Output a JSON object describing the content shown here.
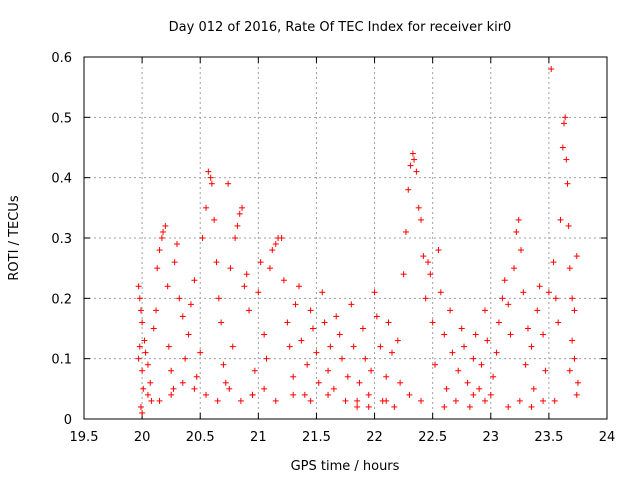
{
  "chart_data": {
    "type": "scatter",
    "title": "Day 012 of 2016, Rate Of TEC Index for receiver kir0",
    "xlabel": "GPS time / hours",
    "ylabel": "ROTI / TECUs",
    "xlim": [
      19.5,
      24
    ],
    "ylim": [
      0,
      0.6
    ],
    "x_ticks": [
      19.5,
      20,
      20.5,
      21,
      21.5,
      22,
      22.5,
      23,
      23.5,
      24
    ],
    "x_tick_labels": [
      "19.5",
      "20",
      "20.5",
      "21",
      "21.5",
      "22",
      "22.5",
      "23",
      "23.5",
      "24"
    ],
    "y_ticks": [
      0,
      0.1,
      0.2,
      0.3,
      0.4,
      0.5,
      0.6
    ],
    "y_tick_labels": [
      "0",
      "0.1",
      "0.2",
      "0.3",
      "0.4",
      "0.5",
      "0.6"
    ],
    "grid": true,
    "marker": "+",
    "marker_color": "#ff0000",
    "series": [
      {
        "name": "ROTI",
        "points": [
          [
            19.97,
            0.22
          ],
          [
            19.98,
            0.2
          ],
          [
            19.99,
            0.18
          ],
          [
            20.0,
            0.16
          ],
          [
            19.98,
            0.12
          ],
          [
            19.97,
            0.1
          ],
          [
            20.0,
            0.08
          ],
          [
            20.01,
            0.05
          ],
          [
            19.99,
            0.02
          ],
          [
            20.0,
            0.01
          ],
          [
            20.02,
            0.13
          ],
          [
            20.03,
            0.11
          ],
          [
            20.05,
            0.09
          ],
          [
            20.07,
            0.06
          ],
          [
            20.08,
            0.03
          ],
          [
            20.1,
            0.15
          ],
          [
            20.12,
            0.18
          ],
          [
            20.13,
            0.25
          ],
          [
            20.15,
            0.28
          ],
          [
            20.17,
            0.3
          ],
          [
            20.18,
            0.31
          ],
          [
            20.2,
            0.32
          ],
          [
            20.22,
            0.22
          ],
          [
            20.23,
            0.12
          ],
          [
            20.25,
            0.08
          ],
          [
            20.27,
            0.05
          ],
          [
            20.28,
            0.26
          ],
          [
            20.3,
            0.29
          ],
          [
            20.32,
            0.2
          ],
          [
            20.35,
            0.17
          ],
          [
            20.37,
            0.1
          ],
          [
            20.4,
            0.14
          ],
          [
            20.42,
            0.19
          ],
          [
            20.45,
            0.23
          ],
          [
            20.47,
            0.07
          ],
          [
            20.5,
            0.11
          ],
          [
            20.52,
            0.3
          ],
          [
            20.55,
            0.35
          ],
          [
            20.57,
            0.41
          ],
          [
            20.59,
            0.4
          ],
          [
            20.6,
            0.39
          ],
          [
            20.62,
            0.33
          ],
          [
            20.64,
            0.26
          ],
          [
            20.66,
            0.2
          ],
          [
            20.68,
            0.16
          ],
          [
            20.7,
            0.09
          ],
          [
            20.72,
            0.06
          ],
          [
            20.74,
            0.39
          ],
          [
            20.76,
            0.25
          ],
          [
            20.78,
            0.12
          ],
          [
            20.8,
            0.3
          ],
          [
            20.82,
            0.32
          ],
          [
            20.84,
            0.34
          ],
          [
            20.86,
            0.35
          ],
          [
            20.88,
            0.22
          ],
          [
            20.9,
            0.24
          ],
          [
            20.92,
            0.18
          ],
          [
            20.95,
            0.04
          ],
          [
            20.97,
            0.08
          ],
          [
            21.0,
            0.21
          ],
          [
            21.02,
            0.26
          ],
          [
            21.05,
            0.14
          ],
          [
            21.07,
            0.1
          ],
          [
            21.1,
            0.25
          ],
          [
            21.12,
            0.28
          ],
          [
            21.15,
            0.29
          ],
          [
            21.17,
            0.3
          ],
          [
            21.2,
            0.3
          ],
          [
            21.22,
            0.23
          ],
          [
            21.25,
            0.16
          ],
          [
            21.27,
            0.12
          ],
          [
            21.3,
            0.07
          ],
          [
            21.32,
            0.19
          ],
          [
            21.35,
            0.22
          ],
          [
            21.37,
            0.13
          ],
          [
            21.4,
            0.04
          ],
          [
            21.42,
            0.09
          ],
          [
            21.45,
            0.18
          ],
          [
            21.47,
            0.15
          ],
          [
            21.5,
            0.11
          ],
          [
            21.52,
            0.06
          ],
          [
            21.55,
            0.21
          ],
          [
            21.57,
            0.16
          ],
          [
            21.6,
            0.08
          ],
          [
            21.62,
            0.12
          ],
          [
            21.65,
            0.05
          ],
          [
            21.67,
            0.17
          ],
          [
            21.7,
            0.14
          ],
          [
            21.72,
            0.1
          ],
          [
            21.75,
            0.03
          ],
          [
            21.77,
            0.07
          ],
          [
            21.8,
            0.19
          ],
          [
            21.82,
            0.12
          ],
          [
            21.85,
            0.02
          ],
          [
            21.87,
            0.06
          ],
          [
            21.9,
            0.15
          ],
          [
            21.92,
            0.1
          ],
          [
            21.95,
            0.04
          ],
          [
            21.97,
            0.08
          ],
          [
            22.0,
            0.21
          ],
          [
            22.02,
            0.17
          ],
          [
            22.05,
            0.12
          ],
          [
            22.07,
            0.03
          ],
          [
            22.1,
            0.07
          ],
          [
            22.12,
            0.16
          ],
          [
            22.15,
            0.11
          ],
          [
            22.17,
            0.02
          ],
          [
            22.2,
            0.13
          ],
          [
            22.22,
            0.06
          ],
          [
            22.25,
            0.24
          ],
          [
            22.27,
            0.31
          ],
          [
            22.29,
            0.38
          ],
          [
            22.31,
            0.42
          ],
          [
            22.33,
            0.44
          ],
          [
            22.34,
            0.43
          ],
          [
            22.36,
            0.41
          ],
          [
            22.38,
            0.35
          ],
          [
            22.4,
            0.33
          ],
          [
            22.42,
            0.27
          ],
          [
            22.44,
            0.2
          ],
          [
            22.46,
            0.26
          ],
          [
            22.48,
            0.24
          ],
          [
            22.5,
            0.16
          ],
          [
            22.52,
            0.09
          ],
          [
            22.55,
            0.28
          ],
          [
            22.57,
            0.21
          ],
          [
            22.6,
            0.14
          ],
          [
            22.62,
            0.05
          ],
          [
            22.65,
            0.18
          ],
          [
            22.67,
            0.11
          ],
          [
            22.7,
            0.03
          ],
          [
            22.72,
            0.08
          ],
          [
            22.75,
            0.15
          ],
          [
            22.77,
            0.12
          ],
          [
            22.8,
            0.06
          ],
          [
            22.82,
            0.02
          ],
          [
            22.85,
            0.1
          ],
          [
            22.87,
            0.14
          ],
          [
            22.9,
            0.05
          ],
          [
            22.92,
            0.09
          ],
          [
            22.95,
            0.18
          ],
          [
            22.97,
            0.13
          ],
          [
            23.0,
            0.04
          ],
          [
            23.02,
            0.07
          ],
          [
            23.05,
            0.11
          ],
          [
            23.07,
            0.16
          ],
          [
            23.1,
            0.2
          ],
          [
            23.12,
            0.23
          ],
          [
            23.15,
            0.19
          ],
          [
            23.17,
            0.14
          ],
          [
            23.2,
            0.25
          ],
          [
            23.22,
            0.31
          ],
          [
            23.24,
            0.33
          ],
          [
            23.26,
            0.28
          ],
          [
            23.28,
            0.21
          ],
          [
            23.3,
            0.09
          ],
          [
            23.32,
            0.15
          ],
          [
            23.35,
            0.12
          ],
          [
            23.37,
            0.05
          ],
          [
            23.4,
            0.18
          ],
          [
            23.42,
            0.22
          ],
          [
            23.45,
            0.14
          ],
          [
            23.47,
            0.08
          ],
          [
            23.5,
            0.21
          ],
          [
            23.52,
            0.58
          ],
          [
            23.54,
            0.26
          ],
          [
            23.56,
            0.2
          ],
          [
            23.58,
            0.16
          ],
          [
            23.6,
            0.33
          ],
          [
            23.62,
            0.45
          ],
          [
            23.63,
            0.49
          ],
          [
            23.64,
            0.5
          ],
          [
            23.65,
            0.43
          ],
          [
            23.66,
            0.39
          ],
          [
            23.67,
            0.32
          ],
          [
            23.68,
            0.25
          ],
          [
            23.7,
            0.2
          ],
          [
            23.72,
            0.18
          ],
          [
            23.74,
            0.27
          ],
          [
            23.75,
            0.06
          ],
          [
            23.74,
            0.04
          ],
          [
            23.72,
            0.1
          ],
          [
            23.7,
            0.13
          ],
          [
            23.68,
            0.08
          ],
          [
            23.55,
            0.03
          ],
          [
            23.45,
            0.03
          ],
          [
            23.35,
            0.02
          ],
          [
            23.25,
            0.03
          ],
          [
            23.15,
            0.02
          ],
          [
            22.95,
            0.03
          ],
          [
            22.85,
            0.04
          ],
          [
            22.6,
            0.02
          ],
          [
            22.4,
            0.03
          ],
          [
            22.3,
            0.04
          ],
          [
            22.1,
            0.03
          ],
          [
            21.95,
            0.02
          ],
          [
            21.85,
            0.03
          ],
          [
            21.6,
            0.04
          ],
          [
            21.45,
            0.03
          ],
          [
            21.3,
            0.04
          ],
          [
            21.15,
            0.03
          ],
          [
            21.05,
            0.05
          ],
          [
            20.95,
            0.04
          ],
          [
            20.85,
            0.03
          ],
          [
            20.75,
            0.05
          ],
          [
            20.65,
            0.03
          ],
          [
            20.55,
            0.04
          ],
          [
            20.45,
            0.05
          ],
          [
            20.35,
            0.06
          ],
          [
            20.25,
            0.04
          ],
          [
            20.15,
            0.03
          ],
          [
            20.05,
            0.04
          ]
        ]
      }
    ]
  }
}
